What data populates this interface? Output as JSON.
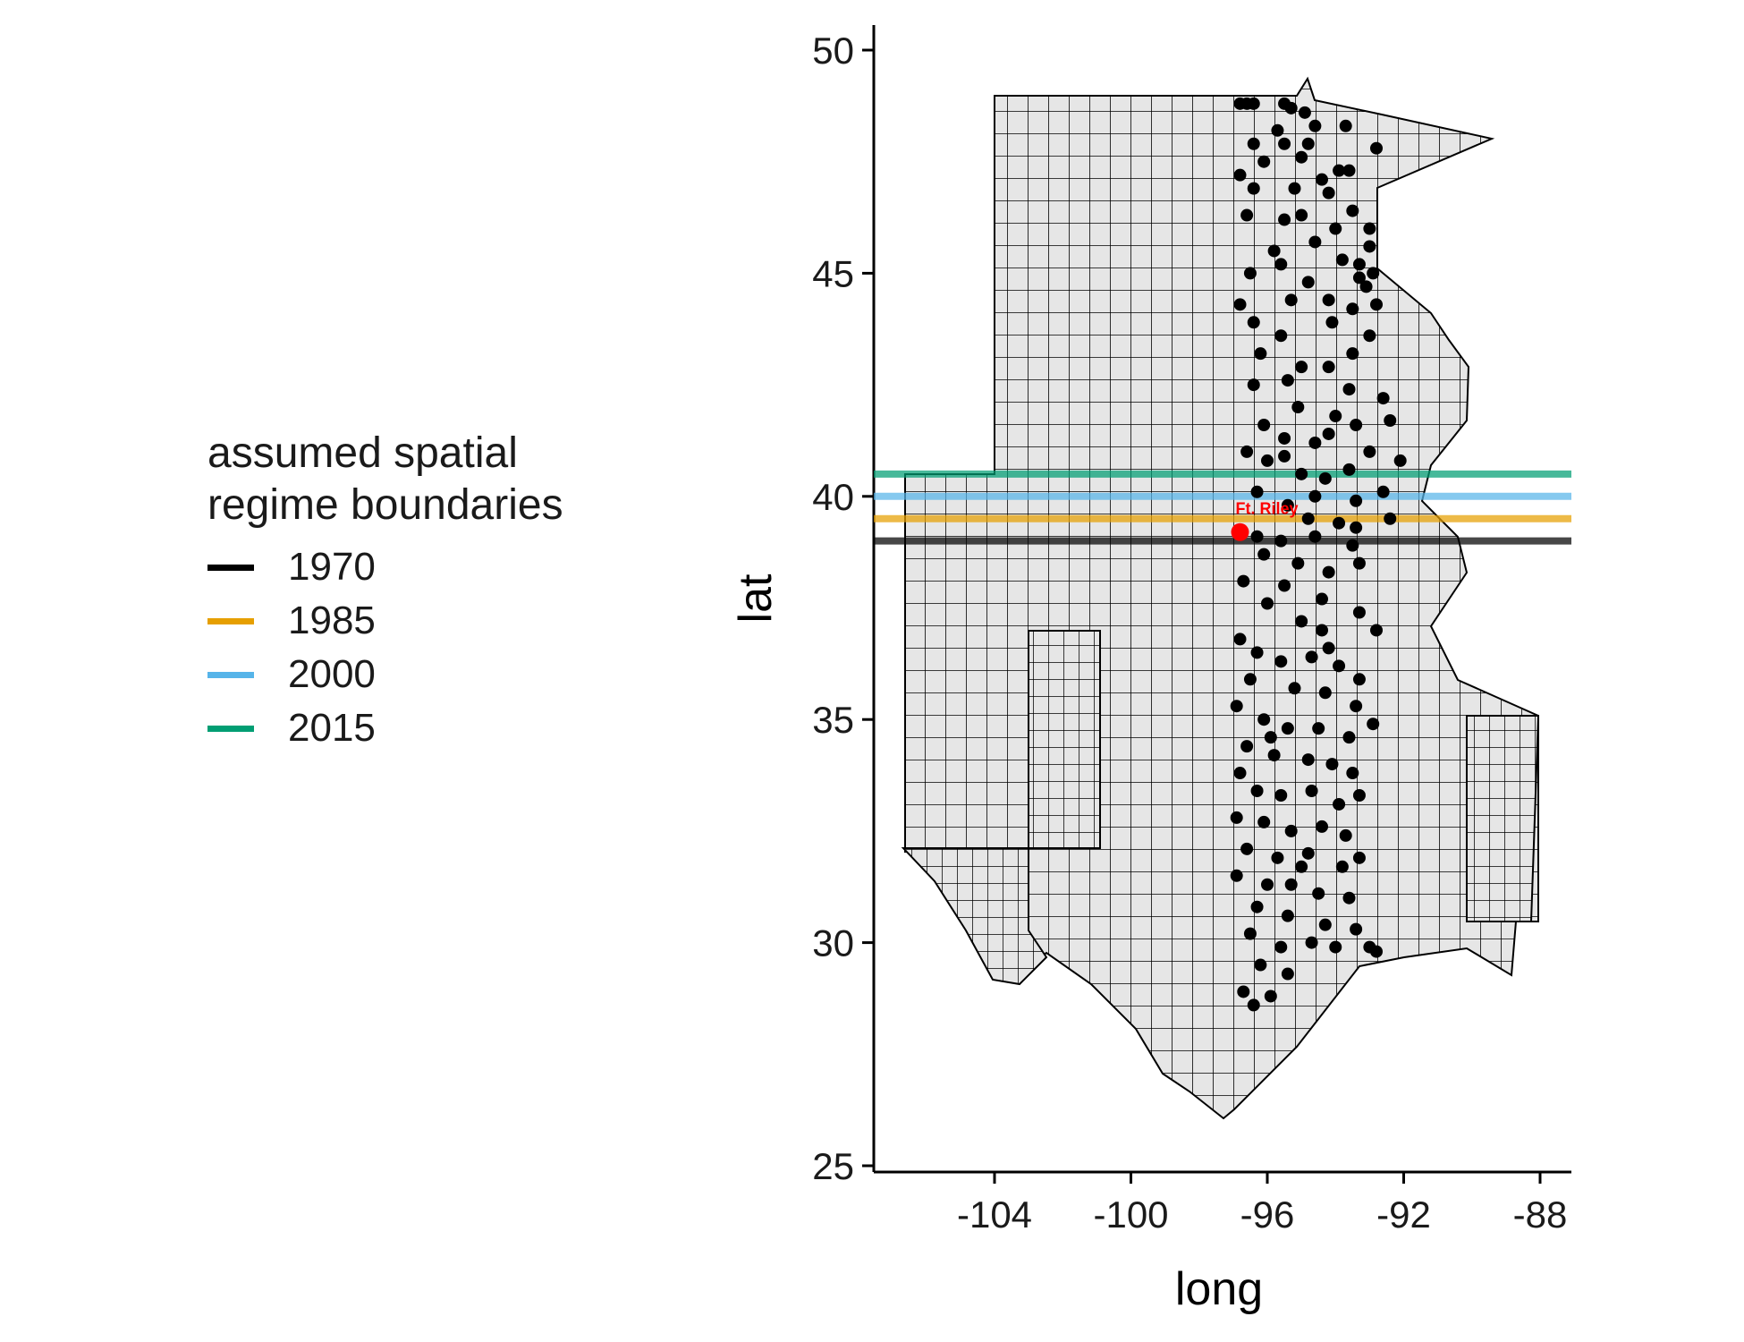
{
  "legend": {
    "title_line1": "assumed spatial",
    "title_line2": "regime boundaries",
    "items": [
      {
        "label": "1970",
        "color": "#000000"
      },
      {
        "label": "1985",
        "color": "#E69F00"
      },
      {
        "label": "2000",
        "color": "#56B4E9"
      },
      {
        "label": "2015",
        "color": "#009E73"
      }
    ]
  },
  "chart_data": {
    "type": "map",
    "xlabel": "long",
    "ylabel": "lat",
    "xlim": [
      -107.2,
      -87.2
    ],
    "ylim": [
      24.8,
      50.7
    ],
    "xticks": [
      -104,
      -100,
      -96,
      -92,
      -88
    ],
    "yticks": [
      25,
      30,
      35,
      40,
      45,
      50
    ],
    "map_fill": "#e6e6e6",
    "map_stroke": "#000000",
    "boundary_lines": [
      {
        "year": "1970",
        "lat": 39.0,
        "color": "#000000"
      },
      {
        "year": "1985",
        "lat": 39.5,
        "color": "#E69F00"
      },
      {
        "year": "2000",
        "lat": 40.0,
        "color": "#56B4E9"
      },
      {
        "year": "2015",
        "lat": 40.5,
        "color": "#009E73"
      }
    ],
    "highlight": {
      "label": "Ft. Riley",
      "long": -96.8,
      "lat": 39.2,
      "color": "#ff0000"
    },
    "points": [
      [
        -96.6,
        48.8
      ],
      [
        -96.4,
        48.8
      ],
      [
        -96.8,
        48.8
      ],
      [
        -95.3,
        48.7
      ],
      [
        -95.5,
        48.8
      ],
      [
        -94.9,
        48.6
      ],
      [
        -95.7,
        48.2
      ],
      [
        -94.6,
        48.3
      ],
      [
        -93.7,
        48.3
      ],
      [
        -96.4,
        47.9
      ],
      [
        -95.5,
        47.9
      ],
      [
        -94.8,
        47.9
      ],
      [
        -96.1,
        47.5
      ],
      [
        -95.0,
        47.6
      ],
      [
        -93.9,
        47.3
      ],
      [
        -93.6,
        47.3
      ],
      [
        -94.4,
        47.1
      ],
      [
        -96.8,
        47.2
      ],
      [
        -96.4,
        46.9
      ],
      [
        -95.2,
        46.9
      ],
      [
        -94.2,
        46.8
      ],
      [
        -93.5,
        46.4
      ],
      [
        -96.6,
        46.3
      ],
      [
        -95.0,
        46.3
      ],
      [
        -94.0,
        46.0
      ],
      [
        -93.0,
        46.0
      ],
      [
        -93.0,
        45.6
      ],
      [
        -93.8,
        45.3
      ],
      [
        -95.8,
        45.5
      ],
      [
        -96.5,
        45.0
      ],
      [
        -95.6,
        45.2
      ],
      [
        -93.3,
        45.2
      ],
      [
        -92.9,
        45.0
      ],
      [
        -94.8,
        44.8
      ],
      [
        -93.3,
        44.9
      ],
      [
        -93.1,
        44.7
      ],
      [
        -95.3,
        44.4
      ],
      [
        -94.2,
        44.4
      ],
      [
        -92.8,
        44.3
      ],
      [
        -96.8,
        44.3
      ],
      [
        -96.4,
        43.9
      ],
      [
        -95.6,
        43.6
      ],
      [
        -94.1,
        43.9
      ],
      [
        -93.0,
        43.6
      ],
      [
        -93.5,
        43.2
      ],
      [
        -96.2,
        43.2
      ],
      [
        -95.0,
        42.9
      ],
      [
        -94.2,
        42.9
      ],
      [
        -96.4,
        42.5
      ],
      [
        -95.4,
        42.6
      ],
      [
        -93.6,
        42.4
      ],
      [
        -92.6,
        42.2
      ],
      [
        -95.1,
        42.0
      ],
      [
        -96.1,
        41.6
      ],
      [
        -94.0,
        41.8
      ],
      [
        -93.4,
        41.6
      ],
      [
        -92.4,
        41.7
      ],
      [
        -95.5,
        41.3
      ],
      [
        -96.6,
        41.0
      ],
      [
        -94.6,
        41.2
      ],
      [
        -93.0,
        41.0
      ],
      [
        -92.1,
        40.8
      ],
      [
        -96.0,
        40.8
      ],
      [
        -95.0,
        40.5
      ],
      [
        -94.3,
        40.4
      ],
      [
        -93.6,
        40.6
      ],
      [
        -96.3,
        40.1
      ],
      [
        -94.6,
        40.0
      ],
      [
        -93.4,
        39.9
      ],
      [
        -92.6,
        40.1
      ],
      [
        -95.4,
        39.8
      ],
      [
        -94.8,
        39.5
      ],
      [
        -93.9,
        39.4
      ],
      [
        -92.4,
        39.5
      ],
      [
        -96.3,
        39.1
      ],
      [
        -95.6,
        39.0
      ],
      [
        -94.6,
        39.1
      ],
      [
        -93.5,
        38.9
      ],
      [
        -96.1,
        38.7
      ],
      [
        -95.1,
        38.5
      ],
      [
        -94.2,
        38.3
      ],
      [
        -93.3,
        38.5
      ],
      [
        -96.7,
        38.1
      ],
      [
        -95.5,
        38.0
      ],
      [
        -94.4,
        37.7
      ],
      [
        -93.3,
        37.4
      ],
      [
        -96.0,
        37.6
      ],
      [
        -95.0,
        37.2
      ],
      [
        -94.4,
        37.0
      ],
      [
        -92.8,
        37.0
      ],
      [
        -96.8,
        36.8
      ],
      [
        -96.3,
        36.5
      ],
      [
        -95.6,
        36.3
      ],
      [
        -94.7,
        36.4
      ],
      [
        -93.9,
        36.2
      ],
      [
        -93.3,
        35.9
      ],
      [
        -96.5,
        35.9
      ],
      [
        -95.2,
        35.7
      ],
      [
        -94.3,
        35.6
      ],
      [
        -93.4,
        35.3
      ],
      [
        -96.9,
        35.3
      ],
      [
        -96.1,
        35.0
      ],
      [
        -95.4,
        34.8
      ],
      [
        -94.5,
        34.8
      ],
      [
        -93.6,
        34.6
      ],
      [
        -92.9,
        34.9
      ],
      [
        -96.6,
        34.4
      ],
      [
        -95.8,
        34.2
      ],
      [
        -94.8,
        34.1
      ],
      [
        -94.1,
        34.0
      ],
      [
        -93.5,
        33.8
      ],
      [
        -96.8,
        33.8
      ],
      [
        -96.3,
        33.4
      ],
      [
        -95.6,
        33.3
      ],
      [
        -94.7,
        33.4
      ],
      [
        -93.9,
        33.1
      ],
      [
        -93.3,
        33.3
      ],
      [
        -96.9,
        32.8
      ],
      [
        -96.1,
        32.7
      ],
      [
        -95.3,
        32.5
      ],
      [
        -94.4,
        32.6
      ],
      [
        -93.7,
        32.4
      ],
      [
        -96.6,
        32.1
      ],
      [
        -95.7,
        31.9
      ],
      [
        -94.8,
        32.0
      ],
      [
        -93.8,
        31.7
      ],
      [
        -93.3,
        31.9
      ],
      [
        -96.9,
        31.5
      ],
      [
        -96.0,
        31.3
      ],
      [
        -95.3,
        31.3
      ],
      [
        -94.5,
        31.1
      ],
      [
        -93.6,
        31.0
      ],
      [
        -96.3,
        30.8
      ],
      [
        -95.4,
        30.6
      ],
      [
        -94.3,
        30.4
      ],
      [
        -93.4,
        30.3
      ],
      [
        -96.5,
        30.2
      ],
      [
        -95.6,
        29.9
      ],
      [
        -94.7,
        30.0
      ],
      [
        -93.0,
        29.9
      ],
      [
        -96.2,
        29.5
      ],
      [
        -95.4,
        29.3
      ],
      [
        -96.7,
        28.9
      ],
      [
        -95.9,
        28.8
      ],
      [
        -96.4,
        28.6
      ],
      [
        -94.0,
        29.9
      ],
      [
        -92.8,
        29.8
      ],
      [
        -95.0,
        31.7
      ],
      [
        -95.9,
        34.6
      ],
      [
        -94.2,
        36.6
      ],
      [
        -95.5,
        40.9
      ],
      [
        -94.2,
        41.4
      ],
      [
        -93.5,
        44.2
      ],
      [
        -95.5,
        46.2
      ],
      [
        -94.6,
        45.7
      ],
      [
        -92.8,
        47.8
      ],
      [
        -93.4,
        39.3
      ]
    ]
  }
}
